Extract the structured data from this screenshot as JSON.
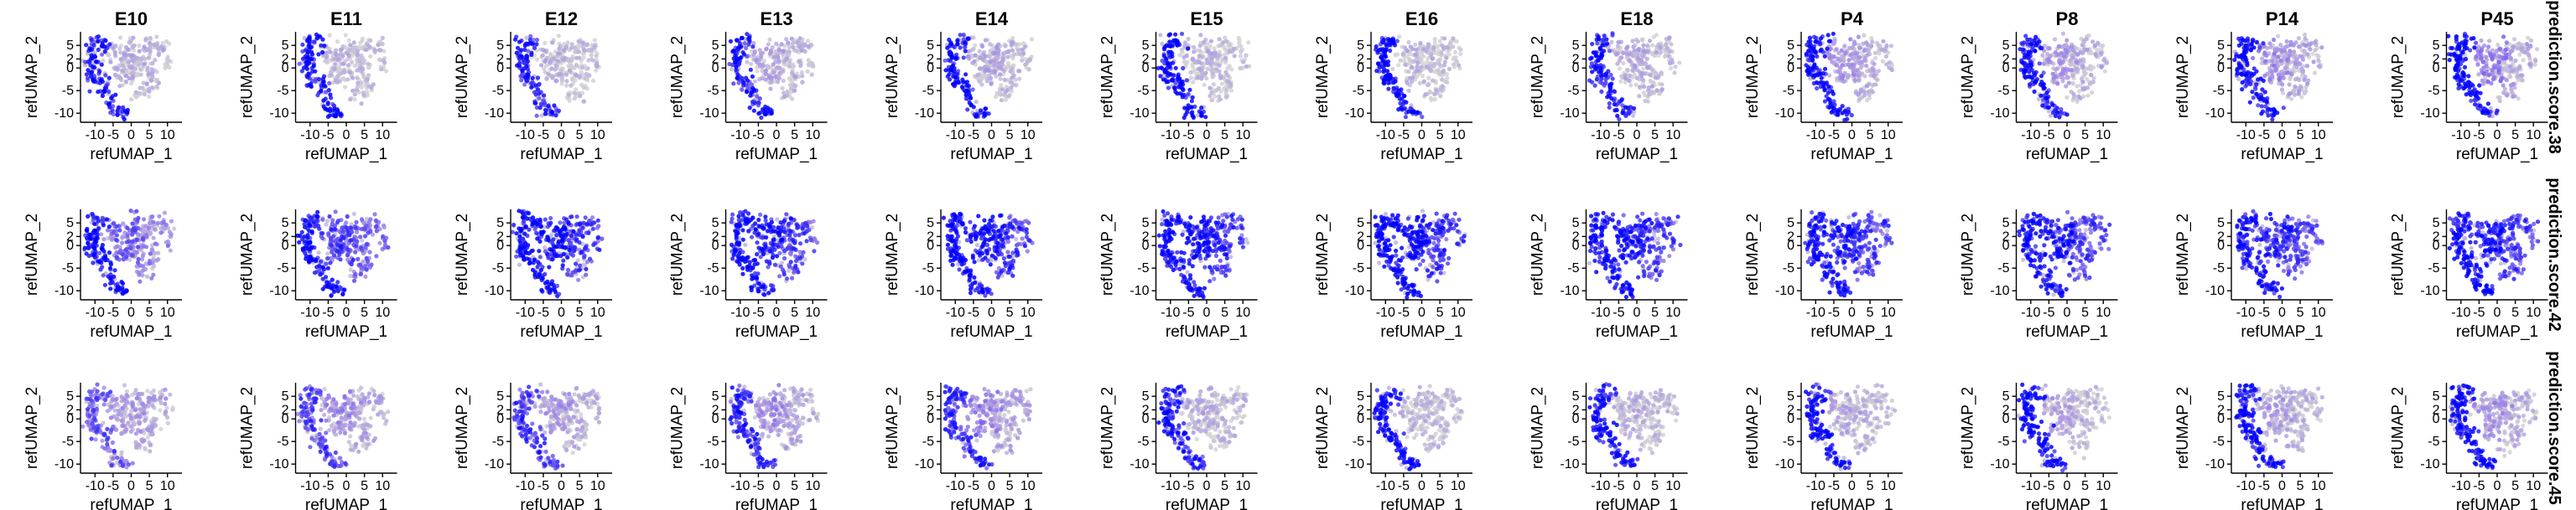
{
  "chart_data": {
    "type": "scatter",
    "layout": "facet-grid",
    "columns": [
      "E10",
      "E11",
      "E12",
      "E13",
      "E14",
      "E15",
      "E16",
      "E18",
      "P4",
      "P8",
      "P14",
      "P45"
    ],
    "rows": [
      "prediction.score.38",
      "prediction.score.42",
      "prediction.score.45"
    ],
    "xlabel": "refUMAP_1",
    "ylabel": "refUMAP_2",
    "xlim": [
      -14,
      14
    ],
    "ylim": [
      -12,
      8
    ],
    "xticks": [
      -10,
      -5,
      0,
      5,
      10
    ],
    "yticks": [
      5,
      2,
      0,
      -5,
      -10
    ],
    "xtick_labels": [
      "-10",
      "-5",
      "0",
      "5",
      "10"
    ],
    "ytick_labels": [
      "5",
      "2",
      "0",
      "-5",
      "-10"
    ],
    "color_scale": {
      "low": "#d3d3d3",
      "mid": "#9b80e8",
      "high": "#0000ff"
    },
    "panels": [
      {
        "row": 0,
        "col": 0,
        "col_label": "E10",
        "row_label": "prediction.score.38",
        "left_arm_score": 0.85,
        "center_score": 0.15,
        "right_score": 0.1
      },
      {
        "row": 0,
        "col": 1,
        "col_label": "E11",
        "row_label": "prediction.score.38",
        "left_arm_score": 0.9,
        "center_score": 0.1,
        "right_score": 0.05
      },
      {
        "row": 0,
        "col": 2,
        "col_label": "E12",
        "row_label": "prediction.score.38",
        "left_arm_score": 0.8,
        "center_score": 0.1,
        "right_score": 0.05
      },
      {
        "row": 0,
        "col": 3,
        "col_label": "E13",
        "row_label": "prediction.score.38",
        "left_arm_score": 0.85,
        "center_score": 0.2,
        "right_score": 0.1
      },
      {
        "row": 0,
        "col": 4,
        "col_label": "E14",
        "row_label": "prediction.score.38",
        "left_arm_score": 0.9,
        "center_score": 0.2,
        "right_score": 0.1
      },
      {
        "row": 0,
        "col": 5,
        "col_label": "E15",
        "row_label": "prediction.score.38",
        "left_arm_score": 0.95,
        "center_score": 0.1,
        "right_score": 0.05
      },
      {
        "row": 0,
        "col": 6,
        "col_label": "E16",
        "row_label": "prediction.score.38",
        "left_arm_score": 0.95,
        "center_score": 0.1,
        "right_score": 0.05
      },
      {
        "row": 0,
        "col": 7,
        "col_label": "E18",
        "row_label": "prediction.score.38",
        "left_arm_score": 0.9,
        "center_score": 0.15,
        "right_score": 0.1
      },
      {
        "row": 0,
        "col": 8,
        "col_label": "P4",
        "row_label": "prediction.score.38",
        "left_arm_score": 0.95,
        "center_score": 0.3,
        "right_score": 0.15
      },
      {
        "row": 0,
        "col": 9,
        "col_label": "P8",
        "row_label": "prediction.score.38",
        "left_arm_score": 0.9,
        "center_score": 0.3,
        "right_score": 0.15
      },
      {
        "row": 0,
        "col": 10,
        "col_label": "P14",
        "row_label": "prediction.score.38",
        "left_arm_score": 0.95,
        "center_score": 0.35,
        "right_score": 0.2
      },
      {
        "row": 0,
        "col": 11,
        "col_label": "P45",
        "row_label": "prediction.score.38",
        "left_arm_score": 0.95,
        "center_score": 0.4,
        "right_score": 0.2
      },
      {
        "row": 1,
        "col": 0,
        "col_label": "E10",
        "row_label": "prediction.score.42",
        "left_arm_score": 0.9,
        "center_score": 0.55,
        "right_score": 0.4
      },
      {
        "row": 1,
        "col": 1,
        "col_label": "E11",
        "row_label": "prediction.score.42",
        "left_arm_score": 0.9,
        "center_score": 0.7,
        "right_score": 0.55
      },
      {
        "row": 1,
        "col": 2,
        "col_label": "E12",
        "row_label": "prediction.score.42",
        "left_arm_score": 0.95,
        "center_score": 0.85,
        "right_score": 0.7
      },
      {
        "row": 1,
        "col": 3,
        "col_label": "E13",
        "row_label": "prediction.score.42",
        "left_arm_score": 0.95,
        "center_score": 0.85,
        "right_score": 0.7
      },
      {
        "row": 1,
        "col": 4,
        "col_label": "E14",
        "row_label": "prediction.score.42",
        "left_arm_score": 0.95,
        "center_score": 0.9,
        "right_score": 0.75
      },
      {
        "row": 1,
        "col": 5,
        "col_label": "E15",
        "row_label": "prediction.score.42",
        "left_arm_score": 0.95,
        "center_score": 0.9,
        "right_score": 0.75
      },
      {
        "row": 1,
        "col": 6,
        "col_label": "E16",
        "row_label": "prediction.score.42",
        "left_arm_score": 0.95,
        "center_score": 0.9,
        "right_score": 0.75
      },
      {
        "row": 1,
        "col": 7,
        "col_label": "E18",
        "row_label": "prediction.score.42",
        "left_arm_score": 0.9,
        "center_score": 0.85,
        "right_score": 0.7
      },
      {
        "row": 1,
        "col": 8,
        "col_label": "P4",
        "row_label": "prediction.score.42",
        "left_arm_score": 0.9,
        "center_score": 0.85,
        "right_score": 0.7
      },
      {
        "row": 1,
        "col": 9,
        "col_label": "P8",
        "row_label": "prediction.score.42",
        "left_arm_score": 0.9,
        "center_score": 0.85,
        "right_score": 0.7
      },
      {
        "row": 1,
        "col": 10,
        "col_label": "P14",
        "row_label": "prediction.score.42",
        "left_arm_score": 0.9,
        "center_score": 0.8,
        "right_score": 0.65
      },
      {
        "row": 1,
        "col": 11,
        "col_label": "P45",
        "row_label": "prediction.score.42",
        "left_arm_score": 0.95,
        "center_score": 0.85,
        "right_score": 0.7
      },
      {
        "row": 2,
        "col": 0,
        "col_label": "E10",
        "row_label": "prediction.score.45",
        "left_arm_score": 0.6,
        "center_score": 0.3,
        "right_score": 0.2
      },
      {
        "row": 2,
        "col": 1,
        "col_label": "E11",
        "row_label": "prediction.score.45",
        "left_arm_score": 0.7,
        "center_score": 0.35,
        "right_score": 0.2
      },
      {
        "row": 2,
        "col": 2,
        "col_label": "E12",
        "row_label": "prediction.score.45",
        "left_arm_score": 0.75,
        "center_score": 0.3,
        "right_score": 0.15
      },
      {
        "row": 2,
        "col": 3,
        "col_label": "E13",
        "row_label": "prediction.score.45",
        "left_arm_score": 0.8,
        "center_score": 0.35,
        "right_score": 0.2
      },
      {
        "row": 2,
        "col": 4,
        "col_label": "E14",
        "row_label": "prediction.score.45",
        "left_arm_score": 0.75,
        "center_score": 0.4,
        "right_score": 0.25
      },
      {
        "row": 2,
        "col": 5,
        "col_label": "E15",
        "row_label": "prediction.score.45",
        "left_arm_score": 0.85,
        "center_score": 0.15,
        "right_score": 0.1
      },
      {
        "row": 2,
        "col": 6,
        "col_label": "E16",
        "row_label": "prediction.score.45",
        "left_arm_score": 0.95,
        "center_score": 0.1,
        "right_score": 0.05
      },
      {
        "row": 2,
        "col": 7,
        "col_label": "E18",
        "row_label": "prediction.score.45",
        "left_arm_score": 0.9,
        "center_score": 0.15,
        "right_score": 0.1
      },
      {
        "row": 2,
        "col": 8,
        "col_label": "P4",
        "row_label": "prediction.score.45",
        "left_arm_score": 0.9,
        "center_score": 0.2,
        "right_score": 0.1
      },
      {
        "row": 2,
        "col": 9,
        "col_label": "P8",
        "row_label": "prediction.score.45",
        "left_arm_score": 0.95,
        "center_score": 0.2,
        "right_score": 0.1
      },
      {
        "row": 2,
        "col": 10,
        "col_label": "P14",
        "row_label": "prediction.score.45",
        "left_arm_score": 0.95,
        "center_score": 0.25,
        "right_score": 0.15
      },
      {
        "row": 2,
        "col": 11,
        "col_label": "P45",
        "row_label": "prediction.score.45",
        "left_arm_score": 0.95,
        "center_score": 0.3,
        "right_score": 0.15
      }
    ]
  }
}
